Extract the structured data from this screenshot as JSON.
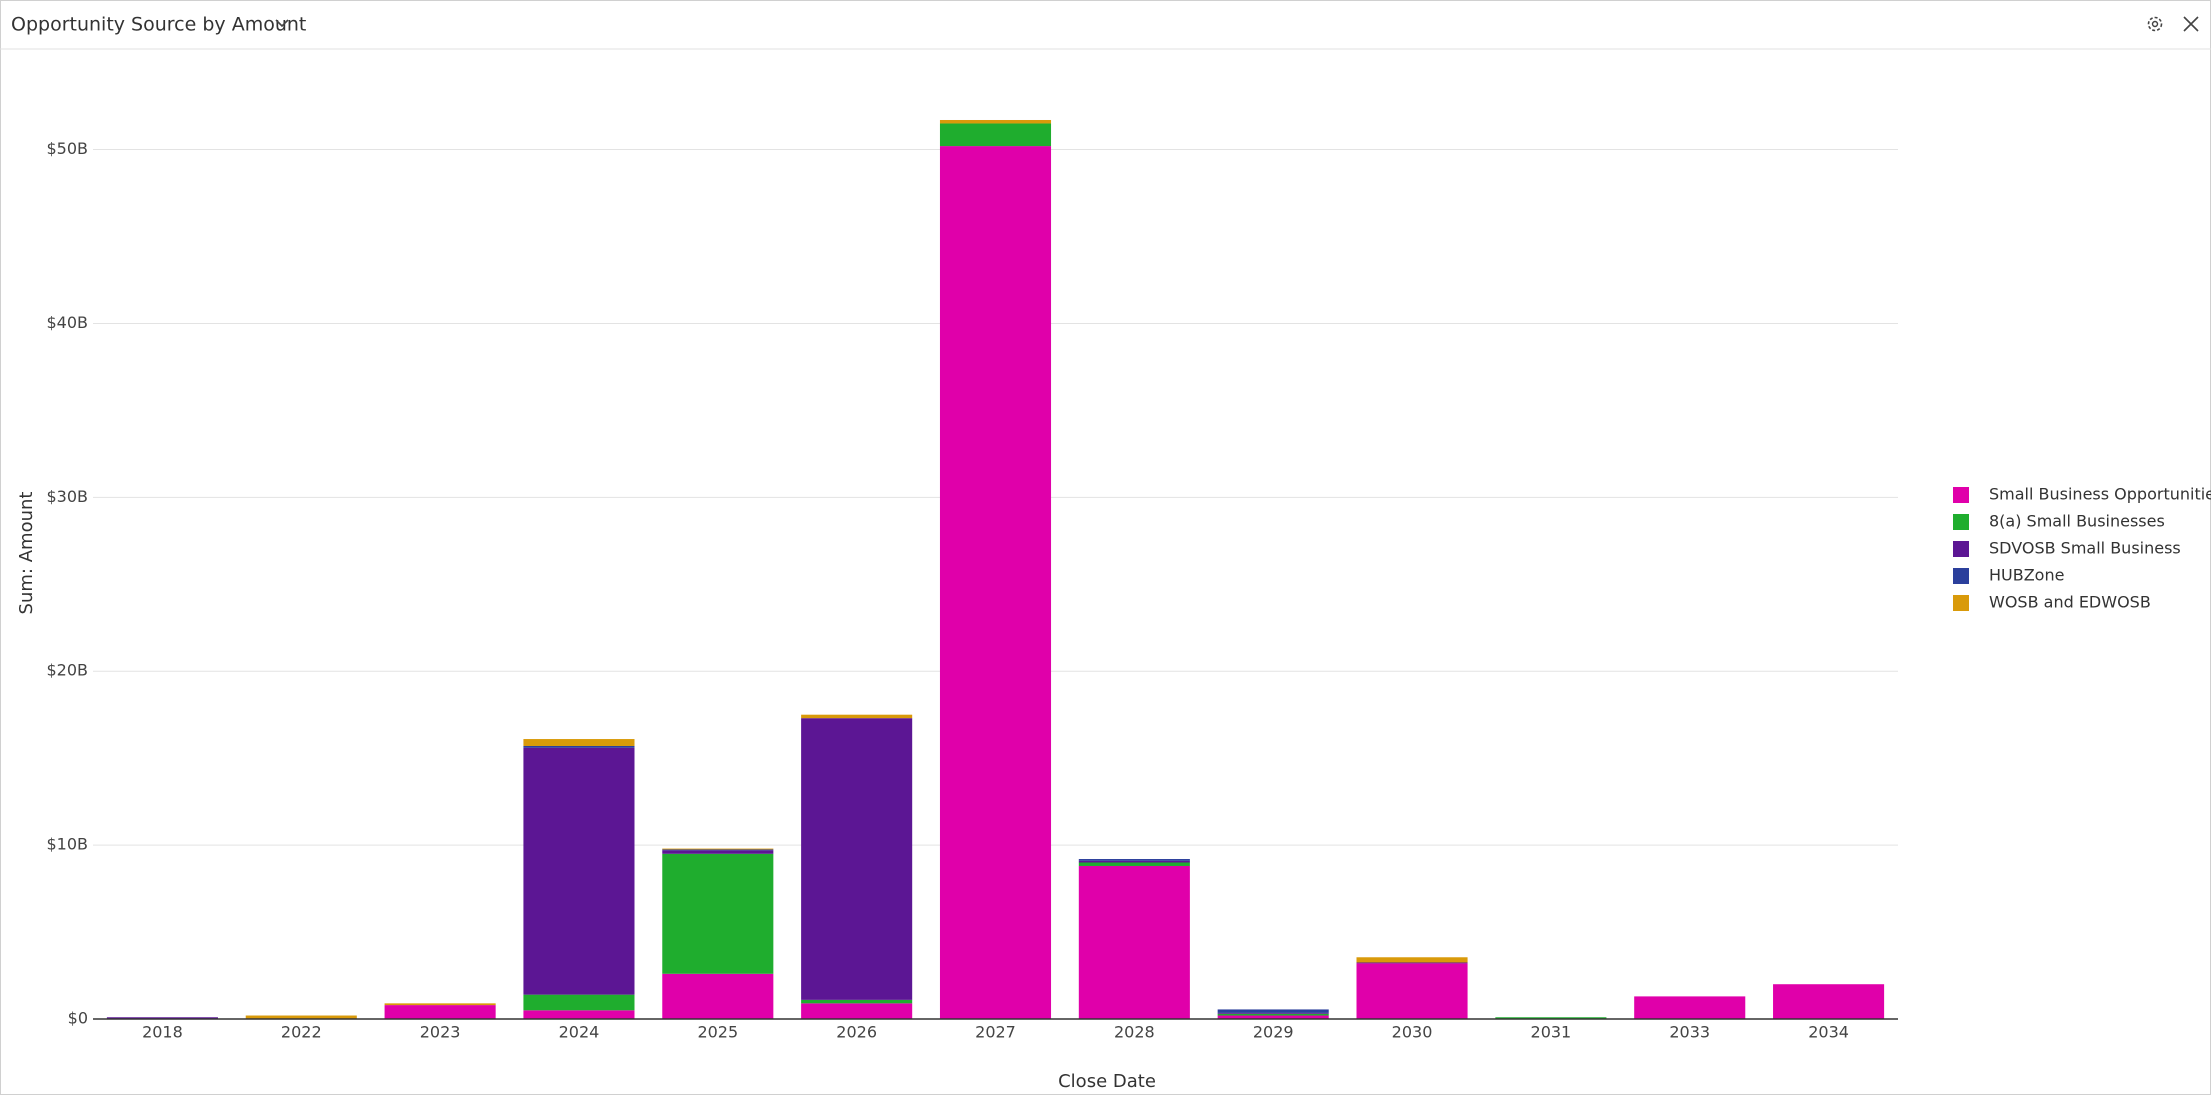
{
  "chart_data": {
    "type": "stacked-bar",
    "title": "Opportunity Source by Amount",
    "x_label": "Close Date",
    "y_label": "Sum: Amount",
    "categories": [
      "2018",
      "2022",
      "2023",
      "2024",
      "2025",
      "2026",
      "2027",
      "2028",
      "2029",
      "2030",
      "2031",
      "2033",
      "2034"
    ],
    "series": [
      {
        "name": "Small Business Opportunities",
        "color": "#e000aa",
        "values": [
          0,
          0,
          0.8,
          0.5,
          2.6,
          0.9,
          50.2,
          8.8,
          0.2,
          3.2,
          0,
          1.3,
          2.0
        ]
      },
      {
        "name": "8(a) Small Businesses",
        "color": "#1fad2e",
        "values": [
          0,
          0,
          0,
          0.9,
          6.9,
          0.2,
          1.3,
          0.2,
          0.1,
          0,
          0.1,
          0,
          0
        ]
      },
      {
        "name": "SDVOSB Small Business",
        "color": "#5c1694",
        "values": [
          0.1,
          0,
          0,
          14.2,
          0.2,
          16.2,
          0,
          0.1,
          0.05,
          0.05,
          0,
          0,
          0
        ]
      },
      {
        "name": "HUBZone",
        "color": "#2b3f9c",
        "values": [
          0,
          0,
          0,
          0.1,
          0.05,
          0,
          0,
          0.1,
          0.2,
          0,
          0,
          0,
          0
        ]
      },
      {
        "name": "WOSB and EDWOSB",
        "color": "#d99a0a",
        "values": [
          0,
          0.2,
          0.1,
          0.4,
          0.05,
          0.2,
          0.2,
          0,
          0,
          0.3,
          0,
          0,
          0
        ]
      }
    ],
    "ylim": [
      0,
      54
    ],
    "yticks": [
      {
        "value": 0,
        "label": "$0"
      },
      {
        "value": 10,
        "label": "$10B"
      },
      {
        "value": 20,
        "label": "$20B"
      },
      {
        "value": 30,
        "label": "$30B"
      },
      {
        "value": 40,
        "label": "$40B"
      },
      {
        "value": 50,
        "label": "$50B"
      }
    ],
    "grid": true,
    "legend": "right"
  }
}
